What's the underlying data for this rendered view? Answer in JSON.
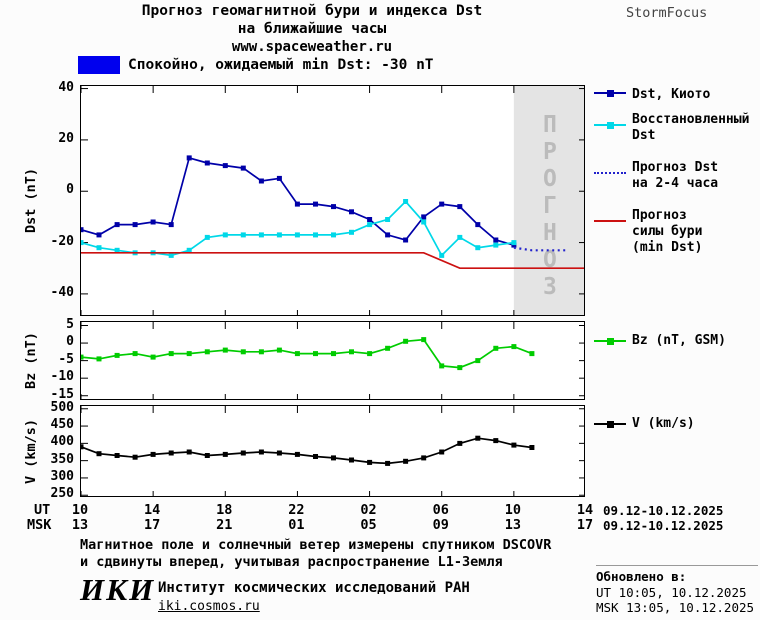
{
  "colors": {
    "dst_kyoto": "#0000a8",
    "restored": "#00d8e8",
    "forecast_dst": "#2222cc",
    "storm": "#cc1111",
    "bz": "#00cc00",
    "v": "#000000",
    "banner": "#0000ee",
    "forecast_bg": "#e4e4e4",
    "forecast_text": "#bbbbbb"
  },
  "header": {
    "title_line1": "Прогноз геомагнитной бури и индекса Dst",
    "title_line2": "на ближайшие часы",
    "site": "www.spaceweather.ru",
    "brand": "StormFocus"
  },
  "banner": {
    "text": "Спокойно, ожидаемый min Dst: -30 nT"
  },
  "chart_data": [
    {
      "type": "line",
      "title": "Прогноз геомагнитной бури и индекса Dst на ближайшие часы",
      "ylabel": "Dst (nT)",
      "ylim": [
        -49,
        41
      ],
      "yticks": [
        40,
        20,
        0,
        -20,
        -40
      ],
      "xlim": [
        0,
        28
      ],
      "forecast_region": {
        "from_hour": 24,
        "label": "ПРОГНОЗ"
      },
      "series": [
        {
          "name": "Dst, Киото",
          "color": "#0000a8",
          "marker": "square",
          "x": [
            0,
            1,
            2,
            3,
            4,
            5,
            6,
            7,
            8,
            9,
            10,
            11,
            12,
            13,
            14,
            15,
            16,
            17,
            18,
            19,
            20,
            21,
            22,
            23,
            24
          ],
          "y": [
            -15,
            -17,
            -13,
            -13,
            -12,
            -13,
            13,
            11,
            10,
            9,
            4,
            5,
            -5,
            -5,
            -6,
            -8,
            -11,
            -17,
            -19,
            -10,
            -5,
            -6,
            -13,
            -19,
            -21
          ]
        },
        {
          "name": "Восстановленный Dst",
          "color": "#00d8e8",
          "marker": "square",
          "x": [
            0,
            1,
            2,
            3,
            4,
            5,
            6,
            7,
            8,
            9,
            10,
            11,
            12,
            13,
            14,
            15,
            16,
            17,
            18,
            19,
            20,
            21,
            22,
            23,
            24
          ],
          "y": [
            -20,
            -22,
            -23,
            -24,
            -24,
            -25,
            -23,
            -18,
            -17,
            -17,
            -17,
            -17,
            -17,
            -17,
            -17,
            -16,
            -13,
            -11,
            -4,
            -12,
            -25,
            -18,
            -22,
            -21,
            -20
          ]
        },
        {
          "name": "Прогноз Dst на 2-4 часа",
          "color": "#2222cc",
          "style": "dotted",
          "x": [
            24,
            25,
            26,
            27
          ],
          "y": [
            -22,
            -23,
            -23,
            -23
          ]
        },
        {
          "name": "Прогноз силы бури (min Dst)",
          "color": "#cc1111",
          "x": [
            0,
            19,
            21,
            28
          ],
          "y": [
            -24,
            -24,
            -30,
            -30
          ]
        }
      ]
    },
    {
      "type": "line",
      "ylabel": "Bz (nT)",
      "ylim": [
        -16.5,
        6
      ],
      "yticks": [
        5,
        0,
        -5,
        -10,
        -15
      ],
      "xlim": [
        0,
        28
      ],
      "series": [
        {
          "name": "Bz (nT, GSM)",
          "color": "#00cc00",
          "marker": "square",
          "x": [
            0,
            1,
            2,
            3,
            4,
            5,
            6,
            7,
            8,
            9,
            10,
            11,
            12,
            13,
            14,
            15,
            16,
            17,
            18,
            19,
            20,
            21,
            22,
            23,
            24,
            25
          ],
          "y": [
            -4,
            -4.5,
            -3.5,
            -3,
            -4,
            -3,
            -3,
            -2.5,
            -2,
            -2.5,
            -2.5,
            -2,
            -3,
            -3,
            -3,
            -2.5,
            -3,
            -1.5,
            0.5,
            1,
            -6.5,
            -7,
            -5,
            -1.5,
            -1,
            -3
          ]
        }
      ]
    },
    {
      "type": "line",
      "ylabel": "V (km/s)",
      "ylim": [
        242,
        508
      ],
      "yticks": [
        500,
        450,
        400,
        350,
        300,
        250
      ],
      "xlim": [
        0,
        28
      ],
      "series": [
        {
          "name": "V (km/s)",
          "color": "#000000",
          "marker": "square",
          "x": [
            0,
            1,
            2,
            3,
            4,
            5,
            6,
            7,
            8,
            9,
            10,
            11,
            12,
            13,
            14,
            15,
            16,
            17,
            18,
            19,
            20,
            21,
            22,
            23,
            24,
            25
          ],
          "y": [
            390,
            370,
            365,
            360,
            368,
            372,
            375,
            365,
            368,
            372,
            375,
            372,
            368,
            362,
            358,
            352,
            345,
            342,
            348,
            358,
            375,
            400,
            415,
            408,
            395,
            388
          ]
        }
      ]
    }
  ],
  "xaxis": {
    "ut_label": "UT",
    "msk_label": "MSK",
    "tick_hours": [
      0,
      4,
      8,
      12,
      16,
      20,
      24,
      28
    ],
    "ut_ticks": [
      "10",
      "14",
      "18",
      "22",
      "02",
      "06",
      "10",
      "14"
    ],
    "msk_ticks": [
      "13",
      "17",
      "21",
      "01",
      "05",
      "09",
      "13",
      "17"
    ],
    "ut_date_range": "09.12-10.12.2025",
    "msk_date_range": "09.12-10.12.2025"
  },
  "legend": {
    "dst_kyoto": "Dst, Киото",
    "restored_l1": "Восстановленный",
    "restored_l2": "Dst",
    "forecast_l1": "Прогноз Dst",
    "forecast_l2": "на 2-4 часа",
    "storm_l1": "Прогноз",
    "storm_l2": "силы бури",
    "storm_l3": "(min Dst)",
    "bz": "Bz (nT, GSM)",
    "v": "V (km/s)"
  },
  "footnotes": {
    "line1": "Магнитное поле и солнечный ветер измерены спутником DSCOVR",
    "line2": "и сдвинуты вперед, учитывая распространение L1-Земля"
  },
  "footer": {
    "logo": "ИКИ",
    "institute": "Институт космических исследований РАН",
    "site": "iki.cosmos.ru",
    "updated_label": "Обновлено в:",
    "updated_ut": "UT  10:05, 10.12.2025",
    "updated_msk": "MSK 13:05, 10.12.2025"
  }
}
